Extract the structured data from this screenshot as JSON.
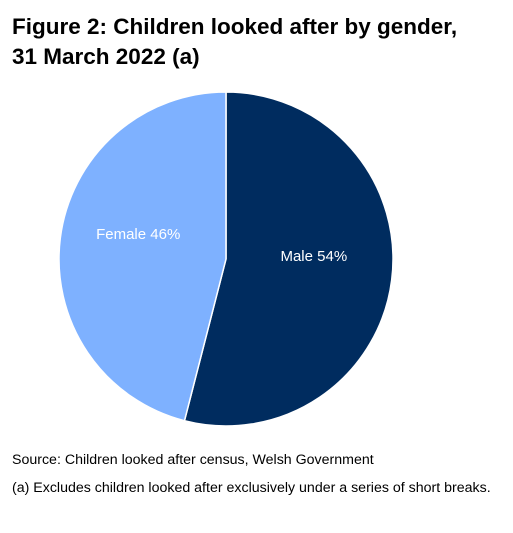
{
  "figure": {
    "title_line1": "Figure 2: Children looked after by gender,",
    "title_line2": "31 March 2022 (a)",
    "source": "Source: Children looked after census, Welsh Government",
    "footnote": "(a) Excludes children looked after exclusively under a series of short breaks."
  },
  "chart_data": {
    "type": "pie",
    "title": "Figure 2: Children looked after by gender, 31 March 2022 (a)",
    "categories": [
      "Male",
      "Female"
    ],
    "values": [
      54,
      46
    ],
    "labels": [
      "Male 54%",
      "Female 46%"
    ],
    "colors": [
      "#002c5f",
      "#7eb1ff"
    ],
    "start_angle": "12 o'clock, clockwise",
    "legend": "none"
  }
}
